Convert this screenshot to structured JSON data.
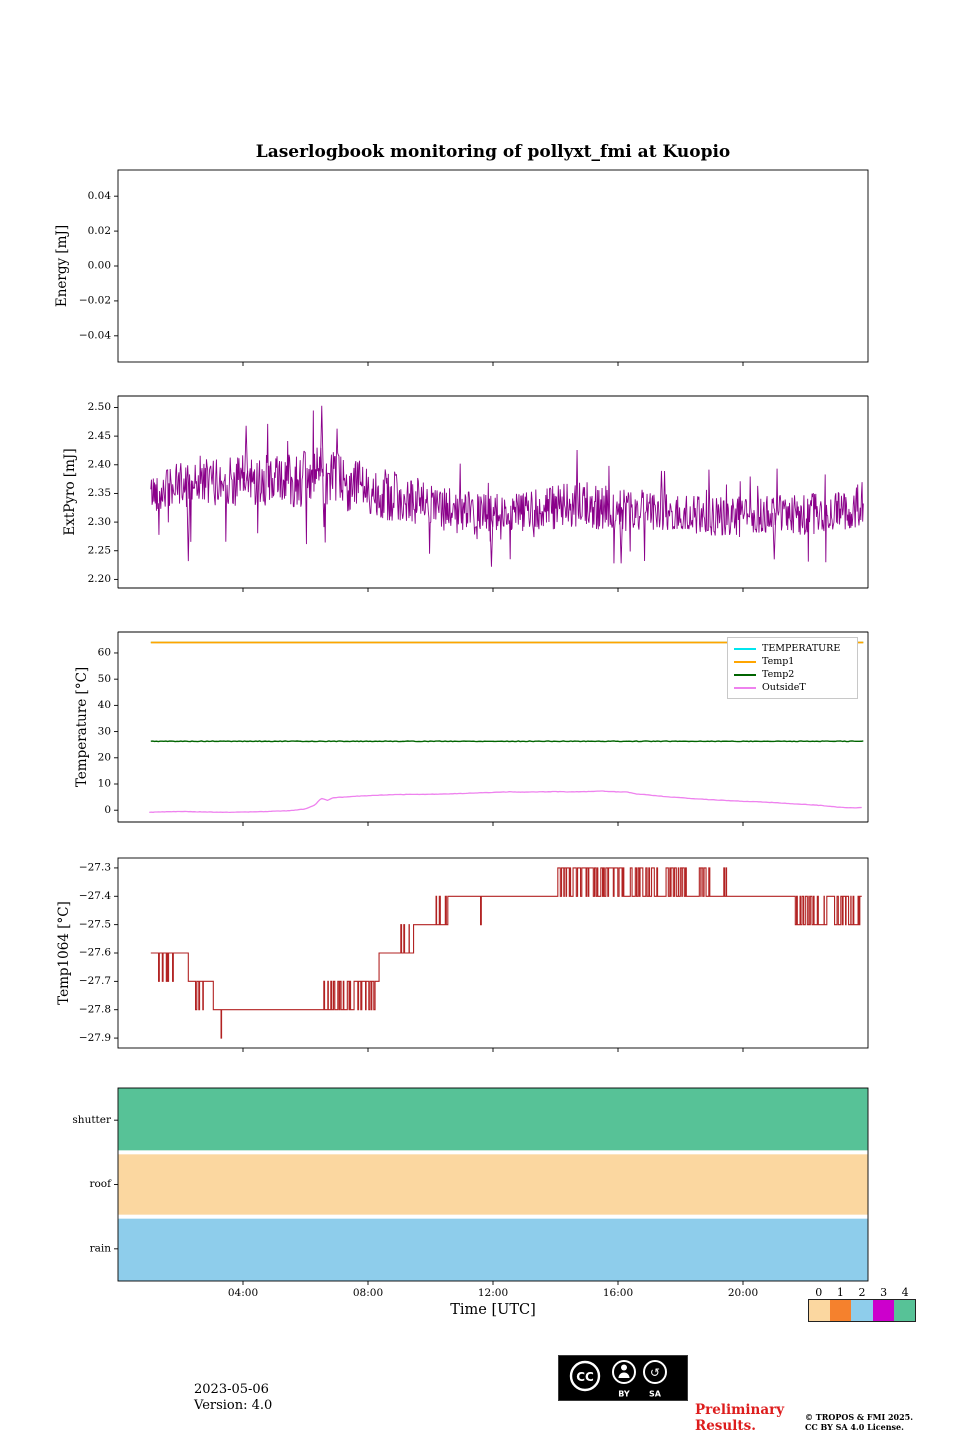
{
  "title": "Laserlogbook monitoring of pollyxt_fmi at Kuopio",
  "xlabel": "Time [UTC]",
  "x_axis": {
    "xlim": [
      0,
      24
    ],
    "tick_positions": [
      4,
      8,
      12,
      16,
      20
    ],
    "tick_labels": [
      "04:00",
      "08:00",
      "12:00",
      "16:00",
      "20:00"
    ]
  },
  "chart_data": [
    {
      "name": "energy",
      "type": "line",
      "ylabel": "Energy [mJ]",
      "ylim": [
        -0.055,
        0.055
      ],
      "ytick_positions": [
        0.04,
        0.02,
        0.0,
        -0.02,
        -0.04
      ],
      "ytick_labels": [
        "0.04",
        "0.02",
        "0.00",
        "−0.02",
        "−0.04"
      ],
      "series": []
    },
    {
      "name": "extpyro",
      "type": "noisy-line",
      "ylabel": "ExtPyro [mJ]",
      "ylim": [
        2.185,
        2.52
      ],
      "ytick_positions": [
        2.5,
        2.45,
        2.4,
        2.35,
        2.3,
        2.25,
        2.2
      ],
      "ytick_labels": [
        "2.50",
        "2.45",
        "2.40",
        "2.35",
        "2.30",
        "2.25",
        "2.20"
      ],
      "series": [
        {
          "name": "ExtPyro",
          "color": "#8A008A",
          "trange": [
            1.05,
            23.85
          ],
          "dt": 0.02,
          "seed": 42,
          "x": [
            1.0,
            2,
            3,
            4,
            5,
            6,
            6.5,
            7,
            8,
            9,
            10,
            11,
            12,
            13,
            14,
            15,
            16,
            17,
            18,
            19,
            20,
            21,
            22,
            23,
            23.8
          ],
          "mean": [
            2.35,
            2.365,
            2.37,
            2.372,
            2.372,
            2.376,
            2.38,
            2.372,
            2.358,
            2.342,
            2.326,
            2.316,
            2.312,
            2.32,
            2.326,
            2.33,
            2.322,
            2.32,
            2.314,
            2.31,
            2.312,
            2.316,
            2.312,
            2.32,
            2.33
          ],
          "amp": [
            0.032,
            0.04,
            0.042,
            0.046,
            0.046,
            0.05,
            0.052,
            0.05,
            0.046,
            0.044,
            0.04,
            0.04,
            0.038,
            0.036,
            0.04,
            0.04,
            0.04,
            0.036,
            0.034,
            0.034,
            0.034,
            0.034,
            0.036,
            0.04,
            0.04
          ],
          "spike_prob": 0.045,
          "spike_scale": 1.7,
          "clamp": [
            2.208,
            2.505
          ],
          "extremes": [
            [
              2.25,
              2.232
            ],
            [
              4.1,
              2.468
            ],
            [
              6.52,
              2.503
            ],
            [
              11.95,
              2.222
            ],
            [
              16.1,
              2.228
            ],
            [
              21.0,
              2.235
            ]
          ]
        }
      ]
    },
    {
      "name": "temperature",
      "type": "multi-line",
      "ylabel": "Temperature [°C]",
      "ylim": [
        -4.5,
        68
      ],
      "ytick_positions": [
        0,
        10,
        20,
        30,
        40,
        50,
        60
      ],
      "ytick_labels": [
        "0",
        "10",
        "20",
        "30",
        "40",
        "50",
        "60"
      ],
      "legend": [
        {
          "label": "TEMPERATURE",
          "color": "#00E5EE"
        },
        {
          "label": "Temp1",
          "color": "#FFA500"
        },
        {
          "label": "Temp2",
          "color": "#006400"
        },
        {
          "label": "OutsideT",
          "color": "#EE82EE"
        }
      ],
      "series": [
        {
          "name": "TEMPERATURE",
          "color": "#00E5EE",
          "mode": "const",
          "value": 64.0,
          "trange": [
            1.05,
            23.85
          ],
          "lw": 1.4
        },
        {
          "name": "Temp1",
          "color": "#FFA500",
          "mode": "const",
          "value": 64.0,
          "trange": [
            1.05,
            23.85
          ],
          "lw": 1.8
        },
        {
          "name": "Temp2",
          "color": "#006400",
          "mode": "const-noisy",
          "value": 26.3,
          "noise": 0.12,
          "seed": 5,
          "trange": [
            1.05,
            23.85
          ],
          "lw": 1.4
        },
        {
          "name": "OutsideT",
          "color": "#EE82EE",
          "mode": "points",
          "noise": 0.07,
          "seed": 9,
          "lw": 1.3,
          "points": [
            [
              1.0,
              -0.8
            ],
            [
              1.5,
              -0.6
            ],
            [
              2.0,
              -0.5
            ],
            [
              2.5,
              -0.6
            ],
            [
              3.0,
              -0.7
            ],
            [
              3.5,
              -0.8
            ],
            [
              4.0,
              -0.7
            ],
            [
              4.5,
              -0.6
            ],
            [
              5.0,
              -0.4
            ],
            [
              5.5,
              -0.2
            ],
            [
              6.0,
              0.5
            ],
            [
              6.3,
              2.0
            ],
            [
              6.5,
              4.5
            ],
            [
              6.7,
              3.8
            ],
            [
              6.9,
              4.8
            ],
            [
              7.2,
              5.0
            ],
            [
              7.5,
              5.3
            ],
            [
              8.0,
              5.5
            ],
            [
              8.5,
              5.8
            ],
            [
              9.0,
              6.0
            ],
            [
              9.5,
              6.0
            ],
            [
              10.0,
              6.1
            ],
            [
              10.5,
              6.2
            ],
            [
              11.0,
              6.4
            ],
            [
              11.5,
              6.6
            ],
            [
              12.0,
              6.8
            ],
            [
              12.5,
              7.0
            ],
            [
              13.0,
              6.9
            ],
            [
              13.5,
              7.0
            ],
            [
              14.0,
              7.1
            ],
            [
              14.5,
              7.0
            ],
            [
              15.0,
              7.1
            ],
            [
              15.5,
              7.3
            ],
            [
              16.0,
              7.0
            ],
            [
              16.3,
              6.9
            ],
            [
              16.6,
              6.2
            ],
            [
              17.0,
              5.8
            ],
            [
              17.5,
              5.2
            ],
            [
              18.0,
              4.8
            ],
            [
              18.5,
              4.3
            ],
            [
              19.0,
              4.0
            ],
            [
              19.5,
              3.7
            ],
            [
              20.0,
              3.4
            ],
            [
              20.5,
              3.2
            ],
            [
              21.0,
              2.9
            ],
            [
              21.5,
              2.5
            ],
            [
              22.0,
              2.2
            ],
            [
              22.5,
              1.8
            ],
            [
              23.0,
              1.2
            ],
            [
              23.5,
              0.9
            ],
            [
              23.8,
              1.0
            ]
          ]
        }
      ]
    },
    {
      "name": "temp1064",
      "type": "step",
      "ylabel": "Temp1064 [°C]",
      "ylim": [
        -27.935,
        -27.265
      ],
      "ytick_positions": [
        -27.3,
        -27.4,
        -27.5,
        -27.6,
        -27.7,
        -27.8,
        -27.9
      ],
      "ytick_labels": [
        "−27.3",
        "−27.4",
        "−27.5",
        "−27.6",
        "−27.7",
        "−27.8",
        "−27.9"
      ],
      "series": [
        {
          "name": "Temp1064",
          "color": "#B22222",
          "seed": 11,
          "dt": 0.008,
          "segments": [
            [
              1.05,
              2.25,
              -27.6
            ],
            [
              2.25,
              3.05,
              -27.7
            ],
            [
              3.05,
              7.55,
              -27.8
            ],
            [
              7.55,
              8.35,
              -27.7
            ],
            [
              8.35,
              9.45,
              -27.6
            ],
            [
              9.45,
              10.55,
              -27.5
            ],
            [
              10.55,
              23.8,
              -27.4
            ]
          ],
          "bursts": [
            {
              "t0": 1.25,
              "t1": 1.8,
              "to": -27.7,
              "n": 5,
              "wmax": 0.04
            },
            {
              "t0": 2.45,
              "t1": 2.75,
              "to": -27.8,
              "n": 3,
              "wmax": 0.04
            },
            {
              "t0": 3.28,
              "t1": 3.36,
              "to": -27.9,
              "n": 1,
              "wmax": 0.03
            },
            {
              "t0": 6.55,
              "t1": 7.5,
              "to": -27.7,
              "n": 9,
              "wmax": 0.05
            },
            {
              "t0": 7.6,
              "t1": 8.3,
              "to": -27.8,
              "n": 6,
              "wmax": 0.05
            },
            {
              "t0": 9.0,
              "t1": 9.35,
              "to": -27.5,
              "n": 3,
              "wmax": 0.04
            },
            {
              "t0": 10.1,
              "t1": 10.5,
              "to": -27.4,
              "n": 3,
              "wmax": 0.05
            },
            {
              "t0": 11.55,
              "t1": 11.68,
              "to": -27.5,
              "n": 1,
              "wmax": 0.04
            },
            {
              "t0": 14.1,
              "t1": 16.2,
              "to": -27.3,
              "n": 24,
              "wmax": 0.1
            },
            {
              "t0": 16.4,
              "t1": 17.3,
              "to": -27.3,
              "n": 10,
              "wmax": 0.08
            },
            {
              "t0": 17.5,
              "t1": 18.25,
              "to": -27.3,
              "n": 8,
              "wmax": 0.08
            },
            {
              "t0": 18.55,
              "t1": 18.95,
              "to": -27.3,
              "n": 5,
              "wmax": 0.06
            },
            {
              "t0": 19.35,
              "t1": 19.55,
              "to": -27.3,
              "n": 2,
              "wmax": 0.04
            },
            {
              "t0": 21.65,
              "t1": 22.7,
              "to": -27.5,
              "n": 12,
              "wmax": 0.12
            },
            {
              "t0": 22.9,
              "t1": 23.78,
              "to": -27.5,
              "n": 10,
              "wmax": 0.1
            }
          ]
        }
      ]
    },
    {
      "name": "status",
      "type": "status-bands",
      "ylabel": "",
      "rows": [
        {
          "label": "shutter",
          "color": "#57C297"
        },
        {
          "label": "roof",
          "color": "#FBD7A0"
        },
        {
          "label": "rain",
          "color": "#8ECDEB"
        }
      ]
    }
  ],
  "colorbar": {
    "tick_labels": [
      "0",
      "1",
      "2",
      "3",
      "4"
    ],
    "colors": [
      "#FBD7A0",
      "#F5812D",
      "#8ECDEB",
      "#CC00CC",
      "#57C297"
    ]
  },
  "footer": {
    "date": "2023-05-06",
    "version": "Version: 4.0",
    "preliminary_line1": "Preliminary",
    "preliminary_line2": "Results.",
    "accent_red": "#DD1D1D",
    "copyright_line1": "© TROPOS & FMI 2025.",
    "copyright_line2": "CC BY SA 4.0 License.",
    "cc_logo": "CC",
    "cc_by": "BY",
    "cc_sa": "SA",
    "sa_glyph": "↺"
  }
}
